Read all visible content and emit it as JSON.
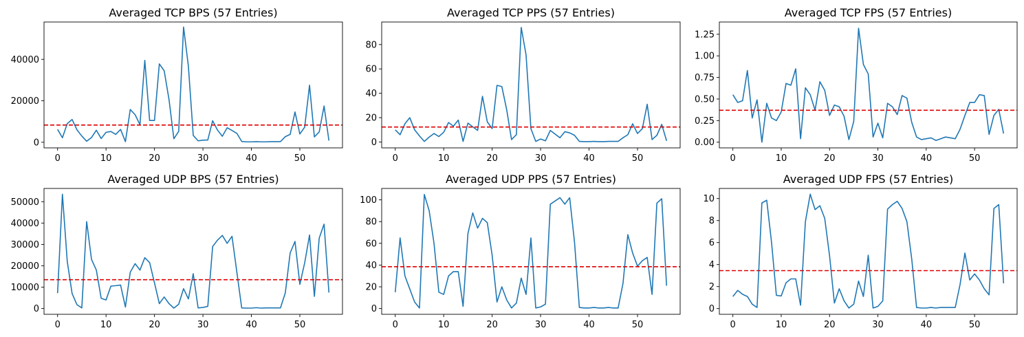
{
  "colors": {
    "series": "#1f77b4",
    "mean_line": "#e00000"
  },
  "chart_data": [
    {
      "type": "line",
      "title": "Averaged TCP BPS (57 Entries)",
      "xlim": [
        -2.8,
        58.8
      ],
      "ylim": [
        -2700,
        58000
      ],
      "xticks": [
        0,
        10,
        20,
        30,
        40,
        50
      ],
      "yticks": [
        0,
        20000,
        40000
      ],
      "mean": 8300,
      "values": [
        6200,
        2200,
        9000,
        11000,
        6000,
        3000,
        500,
        2300,
        5800,
        1800,
        4800,
        5200,
        3800,
        6200,
        300,
        15800,
        13300,
        8500,
        39500,
        10500,
        10500,
        37800,
        34500,
        20600,
        1700,
        5300,
        55600,
        36600,
        3300,
        700,
        1000,
        1100,
        10400,
        5900,
        2900,
        7000,
        5700,
        4300,
        400,
        200,
        200,
        300,
        200,
        200,
        300,
        300,
        300,
        2700,
        3800,
        14600,
        4000,
        7300,
        27500,
        2600,
        5000,
        17500,
        800
      ]
    },
    {
      "type": "line",
      "title": "Averaged TCP PPS (57 Entries)",
      "xlim": [
        -2.8,
        58.8
      ],
      "ylim": [
        -4.8,
        98.5
      ],
      "xticks": [
        0,
        10,
        20,
        30,
        40,
        50
      ],
      "yticks": [
        0,
        20,
        40,
        60,
        80
      ],
      "mean": 12.3,
      "values": [
        10,
        6,
        15,
        20,
        10,
        5,
        0.5,
        4,
        7,
        4.5,
        8,
        16,
        13,
        18,
        0.5,
        15.5,
        12.5,
        9.5,
        37.5,
        16.5,
        11,
        46.5,
        45.5,
        26.5,
        2,
        6,
        94,
        71.5,
        11,
        0.5,
        2.5,
        1,
        9.5,
        6.5,
        3.5,
        8.5,
        7.5,
        5.5,
        0.5,
        0.3,
        0.3,
        0.5,
        0.3,
        0.3,
        0.5,
        0.5,
        0.5,
        3.5,
        6,
        15,
        7,
        11,
        31,
        2,
        5.5,
        14.5,
        1
      ]
    },
    {
      "type": "line",
      "title": "Averaged TCP FPS (57 Entries)",
      "xlim": [
        -2.8,
        58.8
      ],
      "ylim": [
        -0.066,
        1.392
      ],
      "xticks": [
        0,
        10,
        20,
        30,
        40,
        50
      ],
      "yticks": [
        0.0,
        0.25,
        0.5,
        0.75,
        1.0,
        1.25
      ],
      "ytick_labels": [
        "0.00",
        "0.25",
        "0.50",
        "0.75",
        "1.00",
        "1.25"
      ],
      "mean": 0.37,
      "values": [
        0.55,
        0.46,
        0.48,
        0.83,
        0.28,
        0.49,
        0.0,
        0.45,
        0.28,
        0.25,
        0.35,
        0.68,
        0.66,
        0.85,
        0.04,
        0.63,
        0.55,
        0.37,
        0.7,
        0.6,
        0.31,
        0.43,
        0.41,
        0.3,
        0.03,
        0.24,
        1.32,
        0.9,
        0.79,
        0.06,
        0.22,
        0.05,
        0.45,
        0.41,
        0.32,
        0.54,
        0.51,
        0.23,
        0.06,
        0.03,
        0.04,
        0.05,
        0.02,
        0.04,
        0.06,
        0.05,
        0.04,
        0.15,
        0.31,
        0.46,
        0.46,
        0.55,
        0.54,
        0.09,
        0.31,
        0.38,
        0.1
      ]
    },
    {
      "type": "line",
      "title": "Averaged UDP BPS (57 Entries)",
      "xlim": [
        -2.8,
        58.8
      ],
      "ylim": [
        -2700,
        56200
      ],
      "xticks": [
        0,
        10,
        20,
        30,
        40,
        50
      ],
      "yticks": [
        0,
        10000,
        20000,
        30000,
        40000,
        50000
      ],
      "mean": 13500,
      "values": [
        7200,
        53500,
        22000,
        7000,
        1800,
        300,
        40700,
        23000,
        18000,
        4800,
        4000,
        10500,
        10700,
        11000,
        700,
        17000,
        21000,
        18000,
        23800,
        21500,
        12000,
        2300,
        5400,
        2300,
        200,
        2000,
        9300,
        4500,
        16300,
        300,
        500,
        1000,
        29000,
        32000,
        34200,
        30500,
        33800,
        17000,
        300,
        200,
        200,
        400,
        200,
        300,
        300,
        300,
        300,
        7300,
        26000,
        31400,
        11300,
        21400,
        34400,
        5700,
        33000,
        39500,
        7500
      ]
    },
    {
      "type": "line",
      "title": "Averaged UDP PPS (57 Entries)",
      "xlim": [
        -2.8,
        58.8
      ],
      "ylim": [
        -5.3,
        110.5
      ],
      "xticks": [
        0,
        10,
        20,
        30,
        40,
        50
      ],
      "yticks": [
        0,
        20,
        40,
        60,
        80,
        100
      ],
      "mean": 38.5,
      "values": [
        15,
        65,
        30,
        18,
        6,
        0.5,
        105,
        90,
        60,
        15,
        13,
        30,
        34,
        34,
        2,
        69,
        88,
        74,
        83,
        79,
        49,
        6,
        20,
        8,
        0.5,
        5,
        28,
        13,
        65,
        0.5,
        1.5,
        4,
        96,
        99,
        102,
        96,
        102,
        61,
        1,
        0.5,
        0.5,
        1,
        0.5,
        0.5,
        1,
        0.5,
        0.5,
        23,
        68,
        51,
        39,
        44,
        47,
        13,
        97,
        101,
        21
      ]
    },
    {
      "type": "line",
      "title": "Averaged UDP FPS (57 Entries)",
      "xlim": [
        -2.8,
        58.8
      ],
      "ylim": [
        -0.52,
        10.92
      ],
      "xticks": [
        0,
        10,
        20,
        30,
        40,
        50
      ],
      "yticks": [
        0,
        2,
        4,
        6,
        8,
        10
      ],
      "mean": 3.45,
      "values": [
        1.1,
        1.65,
        1.3,
        1.1,
        0.4,
        0.1,
        9.6,
        9.85,
        6.0,
        1.2,
        1.15,
        2.35,
        2.7,
        2.7,
        0.3,
        7.9,
        10.4,
        9.0,
        9.35,
        8.2,
        4.8,
        0.5,
        1.8,
        0.7,
        0.05,
        0.4,
        2.5,
        1.1,
        4.85,
        0.05,
        0.2,
        0.7,
        9.05,
        9.45,
        9.75,
        9.1,
        7.9,
        4.5,
        0.1,
        0.05,
        0.05,
        0.1,
        0.05,
        0.1,
        0.1,
        0.1,
        0.1,
        2.2,
        5.05,
        2.6,
        3.15,
        2.6,
        1.8,
        1.25,
        9.1,
        9.45,
        2.3
      ]
    }
  ]
}
